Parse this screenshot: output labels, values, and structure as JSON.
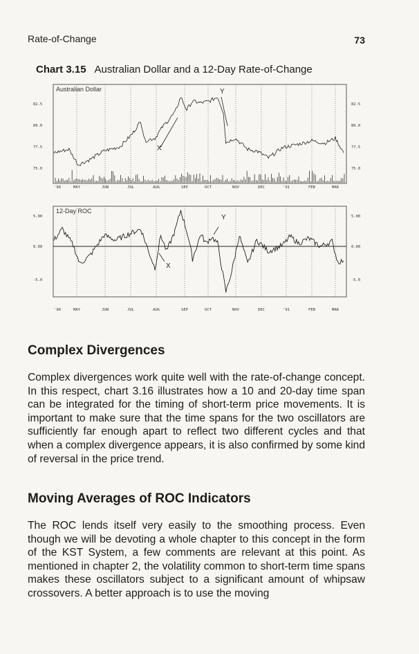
{
  "header": {
    "running_title": "Rate-of-Change",
    "page_number": "73"
  },
  "chart_caption": {
    "label": "Chart 3.15",
    "title": "Australian Dollar and a 12-Day Rate-of-Change"
  },
  "chart_data": [
    {
      "type": "line",
      "title": "Australian Dollar",
      "x_ticks": [
        "'90",
        "MAY",
        "JUN",
        "JUL",
        "AUG",
        "SEP",
        "OCT",
        "NOV",
        "DEC",
        "'91",
        "FEB",
        "MAR"
      ],
      "y_ticks": [
        "82.5",
        "80.0",
        "77.5",
        "75.0"
      ],
      "ylim": [
        73.7,
        84
      ],
      "annotations": [
        "X",
        "Y"
      ],
      "x": [
        "1990-04-02",
        "1990-04-20",
        "1990-05-01",
        "1990-05-15",
        "1990-06-01",
        "1990-06-20",
        "1990-07-05",
        "1990-07-15",
        "1990-07-20",
        "1990-08-01",
        "1990-08-10",
        "1990-08-25",
        "1990-09-01",
        "1990-09-08",
        "1990-09-15",
        "1990-09-25",
        "1990-10-05",
        "1990-10-15",
        "1990-10-22",
        "1990-10-25",
        "1990-11-05",
        "1990-11-20",
        "1990-12-01",
        "1990-12-15",
        "1991-01-01",
        "1991-01-20",
        "1991-02-05",
        "1991-02-20",
        "1991-03-05",
        "1991-03-15"
      ],
      "y": [
        76.8,
        77.2,
        75.4,
        76.0,
        77.0,
        77.5,
        79.0,
        80.5,
        78.2,
        78.5,
        79.8,
        81.5,
        83.3,
        81.8,
        82.8,
        82.6,
        82.8,
        83.3,
        81.5,
        78.0,
        78.5,
        77.2,
        77.0,
        76.2,
        77.4,
        77.8,
        78.2,
        77.9,
        78.5,
        76.8
      ]
    },
    {
      "type": "line",
      "title": "12-Day ROC",
      "x_ticks": [
        "'90",
        "MAY",
        "JUN",
        "JUL",
        "AUG",
        "SEP",
        "OCT",
        "NOV",
        "DEC",
        "'91",
        "FEB",
        "MAR"
      ],
      "y_ticks": [
        "5.00",
        "0.00",
        "-5.0"
      ],
      "ylim": [
        -7.8,
        6.2
      ],
      "annotations": [
        "X",
        "Y"
      ],
      "x": [
        "1990-04-02",
        "1990-04-12",
        "1990-04-25",
        "1990-05-03",
        "1990-05-15",
        "1990-06-01",
        "1990-06-15",
        "1990-07-01",
        "1990-07-15",
        "1990-07-25",
        "1990-08-01",
        "1990-08-08",
        "1990-08-15",
        "1990-08-25",
        "1990-09-01",
        "1990-09-10",
        "1990-09-15",
        "1990-09-25",
        "1990-10-01",
        "1990-10-08",
        "1990-10-15",
        "1990-10-25",
        "1990-11-01",
        "1990-11-10",
        "1990-11-20",
        "1990-12-01",
        "1990-12-15",
        "1991-01-01",
        "1991-01-10",
        "1991-01-20",
        "1991-02-01",
        "1991-02-15",
        "1991-03-01",
        "1991-03-08",
        "1991-03-15"
      ],
      "y": [
        1.0,
        2.8,
        0.2,
        -2.8,
        -1.5,
        1.8,
        1.0,
        2.0,
        2.8,
        -1.0,
        -3.5,
        1.8,
        -0.8,
        2.5,
        5.8,
        1.5,
        -2.0,
        2.0,
        0.5,
        1.5,
        0.5,
        -7.3,
        -4.0,
        1.8,
        -2.8,
        1.0,
        -0.8,
        0.2,
        1.6,
        0.5,
        1.3,
        0.0,
        0.8,
        -2.5,
        -2.3
      ]
    }
  ],
  "sections": [
    {
      "heading": "Complex Divergences",
      "text": "Complex divergences work quite well with the rate-of-change concept. In this respect, chart 3.16 illustrates how a 10 and 20-day time span can be integrated for the timing of short-term price movements. It is important to make sure that the time spans for the two oscillators are sufficiently far enough apart to reflect two different cycles and that when a complex divergence appears, it is also confirmed by some kind of reversal in the price trend."
    },
    {
      "heading": "Moving Averages of ROC Indicators",
      "text": "The ROC lends itself very easily to the smoothing process. Even though we will be devoting a whole chapter to this concept in the form of the KST System, a few comments are relevant at this point. As mentioned in chapter 2, the volatility common to short-term time spans makes these oscillators subject to a significant amount of whipsaw crossovers. A better approach is to use the moving"
    }
  ]
}
